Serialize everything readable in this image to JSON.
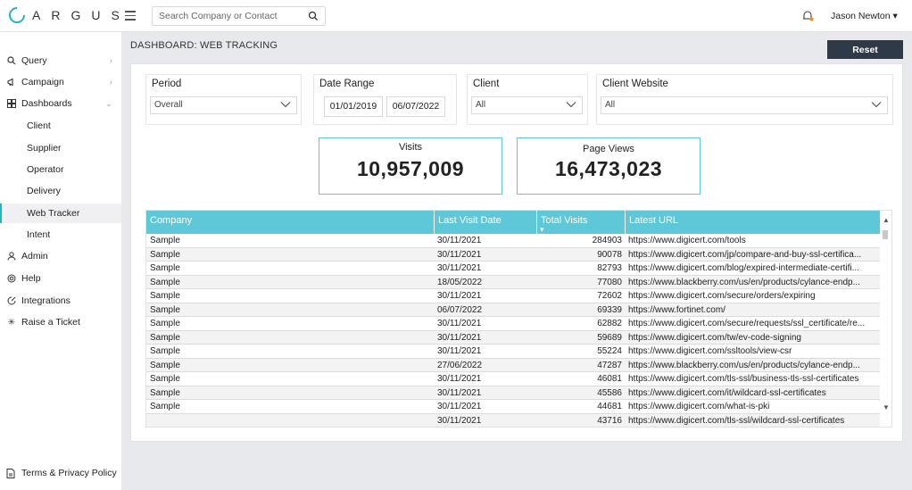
{
  "brand": {
    "name": "ARGUS",
    "accent": "#1fb5c9"
  },
  "search": {
    "placeholder": "Search Company or Contact"
  },
  "user": {
    "name": "Jason Newton ▾"
  },
  "sidebar": {
    "items": [
      {
        "label": "Query",
        "icon": "search-icon"
      },
      {
        "label": "Campaign",
        "icon": "megaphone-icon"
      },
      {
        "label": "Dashboards",
        "icon": "grid-icon"
      },
      {
        "label": "Admin",
        "icon": "user-icon"
      },
      {
        "label": "Help",
        "icon": "lifebuoy-icon"
      },
      {
        "label": "Integrations",
        "icon": "plug-icon"
      },
      {
        "label": "Raise a Ticket",
        "icon": "asterisk-icon"
      }
    ],
    "dashboards": [
      "Client",
      "Supplier",
      "Operator",
      "Delivery",
      "Web Tracker",
      "Intent"
    ],
    "active": "Web Tracker",
    "footer": "Terms & Privacy Policy"
  },
  "page": {
    "title": "DASHBOARD: WEB TRACKING",
    "reset_label": "Reset"
  },
  "filters": {
    "period": {
      "label": "Period",
      "value": "Overall"
    },
    "date_range": {
      "label": "Date Range",
      "from": "01/01/2019",
      "to": "06/07/2022"
    },
    "client": {
      "label": "Client",
      "value": "All"
    },
    "client_website": {
      "label": "Client Website",
      "value": "All"
    }
  },
  "kpis": {
    "visits": {
      "label": "Visits",
      "value": "10,957,009"
    },
    "page_views": {
      "label": "Page Views",
      "value": "16,473,023"
    }
  },
  "table": {
    "columns": [
      "Company",
      "Last Visit Date",
      "Total Visits",
      "Latest URL"
    ],
    "sort_indicator": "▾",
    "rows": [
      [
        "Sample",
        "30/11/2021",
        "284903",
        "https://www.digicert.com/tools"
      ],
      [
        "Sample",
        "30/11/2021",
        "90078",
        "https://www.digicert.com/jp/compare-and-buy-ssl-certifica..."
      ],
      [
        "Sample",
        "30/11/2021",
        "82793",
        "https://www.digicert.com/blog/expired-intermediate-certifi..."
      ],
      [
        "Sample",
        "18/05/2022",
        "77080",
        "https://www.blackberry.com/us/en/products/cylance-endp..."
      ],
      [
        "Sample",
        "30/11/2021",
        "72602",
        "https://www.digicert.com/secure/orders/expiring"
      ],
      [
        "Sample",
        "06/07/2022",
        "69339",
        "https://www.fortinet.com/"
      ],
      [
        "Sample",
        "30/11/2021",
        "62882",
        "https://www.digicert.com/secure/requests/ssl_certificate/re..."
      ],
      [
        "Sample",
        "30/11/2021",
        "59689",
        "https://www.digicert.com/tw/ev-code-signing"
      ],
      [
        "Sample",
        "30/11/2021",
        "55224",
        "https://www.digicert.com/ssltools/view-csr"
      ],
      [
        "Sample",
        "27/06/2022",
        "47287",
        "https://www.blackberry.com/us/en/products/cylance-endp..."
      ],
      [
        "Sample",
        "30/11/2021",
        "46081",
        "https://www.digicert.com/tls-ssl/business-tls-ssl-certificates"
      ],
      [
        "Sample",
        "30/11/2021",
        "45586",
        "https://www.digicert.com/it/wildcard-ssl-certificates"
      ],
      [
        "Sample",
        "30/11/2021",
        "44681",
        "https://www.digicert.com/what-is-pki"
      ],
      [
        "",
        "30/11/2021",
        "43716",
        "https://www.digicert.com/tls-ssl/wildcard-ssl-certificates"
      ]
    ]
  }
}
